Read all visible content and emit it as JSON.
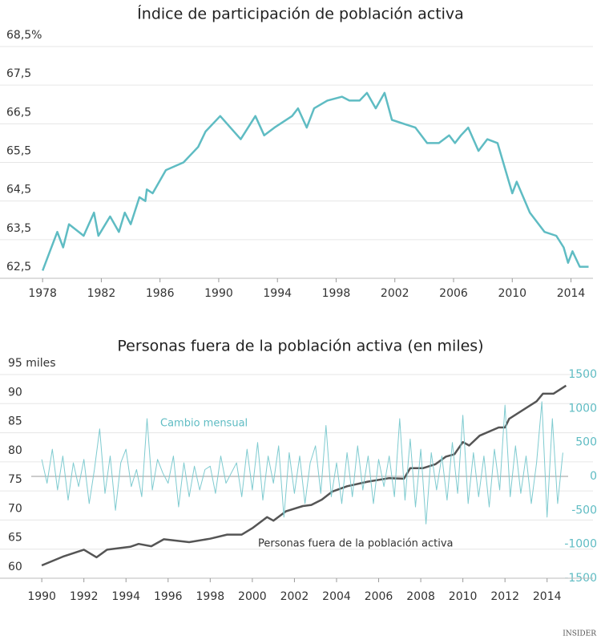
{
  "chart_data": [
    {
      "type": "line",
      "title": "Índice de participación de población activa",
      "series": [
        {
          "name": "Índice de participación",
          "color": "#5fbcc3",
          "x": [
            1978,
            1978.5,
            1979,
            1979.4,
            1979.8,
            1980.8,
            1981.5,
            1981.8,
            1982.6,
            1983.2,
            1983.6,
            1984,
            1984.6,
            1985,
            1985.1,
            1985.5,
            1986.4,
            1987.6,
            1988.6,
            1989.1,
            1990.1,
            1991.5,
            1992.5,
            1993.1,
            1993.8,
            1995,
            1995.4,
            1996,
            1996.5,
            1997.4,
            1998.4,
            1998.9,
            1999.6,
            2000.1,
            2000.7,
            2001.3,
            2001.8,
            2003.4,
            2004.2,
            2005,
            2005.7,
            2006.1,
            2006.5,
            2007,
            2007.7,
            2008.3,
            2009,
            2010,
            2010.3,
            2011.2,
            2012.2,
            2013,
            2013.5,
            2013.8,
            2014.1,
            2014.6,
            2015.2
          ],
          "values": [
            62.7,
            63.2,
            63.7,
            63.3,
            63.9,
            63.6,
            64.2,
            63.6,
            64.1,
            63.7,
            64.2,
            63.9,
            64.6,
            64.5,
            64.8,
            64.7,
            65.3,
            65.5,
            65.9,
            66.3,
            66.7,
            66.1,
            66.7,
            66.2,
            66.4,
            66.7,
            66.9,
            66.4,
            66.9,
            67.1,
            67.2,
            67.1,
            67.1,
            67.3,
            66.9,
            67.3,
            66.6,
            66.4,
            66.0,
            66.0,
            66.2,
            66.0,
            66.2,
            66.4,
            65.8,
            66.1,
            66.0,
            64.7,
            65.0,
            64.2,
            63.7,
            63.6,
            63.3,
            62.9,
            63.2,
            62.8,
            62.8
          ]
        }
      ],
      "xlim": [
        1977.5,
        2015.5
      ],
      "xticks": [
        1978,
        1982,
        1986,
        1990,
        1994,
        1998,
        2002,
        2006,
        2010,
        2014
      ],
      "ylim": [
        62.5,
        68.5
      ],
      "yticks": [
        {
          "value": 62.5,
          "label": "62,5"
        },
        {
          "value": 63.5,
          "label": "63,5"
        },
        {
          "value": 64.5,
          "label": "64,5"
        },
        {
          "value": 65.5,
          "label": "65,5"
        },
        {
          "value": 66.5,
          "label": "66,5"
        },
        {
          "value": 67.5,
          "label": "67,5"
        },
        {
          "value": 68.5,
          "label": "68,5%"
        }
      ],
      "grid": true
    },
    {
      "type": "line",
      "title": "Personas fuera de la población activa (en miles)",
      "series": [
        {
          "name": "Personas fuera de la población activa",
          "color": "#555555",
          "x": [
            1990,
            1991,
            1992,
            1992.6,
            1993.1,
            1994.2,
            1994.6,
            1995.2,
            1995.8,
            1997,
            1998,
            1998.8,
            1999.5,
            2000,
            2000.7,
            2001,
            2001.6,
            2002.4,
            2002.8,
            2003.3,
            2003.8,
            2004.5,
            2005.5,
            2006.5,
            2007.2,
            2007.5,
            2008.1,
            2008.7,
            2009.2,
            2009.6,
            2010,
            2010.3,
            2010.8,
            2011.7,
            2012,
            2012.2,
            2013.5,
            2013.8,
            2014.3,
            2014.9
          ],
          "values": [
            62.2,
            63.7,
            64.9,
            63.6,
            64.9,
            65.4,
            65.9,
            65.5,
            66.7,
            66.2,
            66.8,
            67.5,
            67.5,
            68.6,
            70.5,
            69.9,
            71.5,
            72.4,
            72.6,
            73.5,
            74.9,
            75.8,
            76.6,
            77.2,
            77.1,
            78.9,
            78.9,
            79.6,
            80.9,
            81.3,
            83.4,
            82.8,
            84.5,
            85.9,
            85.9,
            87.4,
            90.4,
            91.7,
            91.7,
            93.1
          ]
        },
        {
          "name": "Cambio mensual",
          "color": "#7fcbd0",
          "axis": "y2",
          "x": [
            1990,
            1990.25,
            1990.5,
            1990.75,
            1991,
            1991.25,
            1991.5,
            1991.75,
            1992,
            1992.25,
            1992.5,
            1992.75,
            1993,
            1993.25,
            1993.5,
            1993.75,
            1994,
            1994.25,
            1994.5,
            1994.75,
            1995,
            1995.25,
            1995.5,
            1995.75,
            1996,
            1996.25,
            1996.5,
            1996.75,
            1997,
            1997.25,
            1997.5,
            1997.75,
            1998,
            1998.25,
            1998.5,
            1998.75,
            1999,
            1999.25,
            1999.5,
            1999.75,
            2000,
            2000.25,
            2000.5,
            2000.75,
            2001,
            2001.25,
            2001.5,
            2001.75,
            2002,
            2002.25,
            2002.5,
            2002.75,
            2003,
            2003.25,
            2003.5,
            2003.75,
            2004,
            2004.25,
            2004.5,
            2004.75,
            2005,
            2005.25,
            2005.5,
            2005.75,
            2006,
            2006.25,
            2006.5,
            2006.75,
            2007,
            2007.25,
            2007.5,
            2007.75,
            2008,
            2008.25,
            2008.5,
            2008.75,
            2009,
            2009.25,
            2009.5,
            2009.75,
            2010,
            2010.25,
            2010.5,
            2010.75,
            2011,
            2011.25,
            2011.5,
            2011.75,
            2012,
            2012.25,
            2012.5,
            2012.75,
            2013,
            2013.25,
            2013.5,
            2013.75,
            2014,
            2014.25,
            2014.5,
            2014.75
          ],
          "values": [
            250,
            -100,
            400,
            -200,
            300,
            -350,
            200,
            -150,
            250,
            -400,
            100,
            700,
            -250,
            300,
            -500,
            200,
            400,
            -150,
            100,
            -300,
            850,
            -200,
            250,
            50,
            -100,
            300,
            -450,
            200,
            -300,
            150,
            -200,
            100,
            150,
            -250,
            300,
            -100,
            50,
            200,
            -300,
            400,
            -200,
            500,
            -350,
            300,
            -100,
            450,
            -600,
            350,
            -250,
            300,
            -400,
            200,
            450,
            -250,
            750,
            -300,
            200,
            -400,
            350,
            -300,
            450,
            -200,
            300,
            -400,
            250,
            -150,
            300,
            -300,
            850,
            -350,
            550,
            -450,
            400,
            -700,
            350,
            -200,
            300,
            -350,
            500,
            -250,
            900,
            -400,
            350,
            -300,
            300,
            -450,
            400,
            -200,
            1050,
            -300,
            450,
            -250,
            300,
            -400,
            200,
            1100,
            -600,
            850,
            -400,
            350
          ]
        }
      ],
      "annotations": [
        "Cambio mensual",
        "Personas fuera de la población activa"
      ],
      "xlim": [
        1989.5,
        2015
      ],
      "xticks": [
        1990,
        1992,
        1994,
        1996,
        1998,
        2000,
        2002,
        2004,
        2006,
        2008,
        2010,
        2012,
        2014
      ],
      "ylim": [
        60,
        95
      ],
      "yticks": [
        60,
        65,
        70,
        75,
        80,
        85,
        90,
        {
          "value": 95,
          "label": "95 miles"
        }
      ],
      "y2lim": [
        -1500,
        1500
      ],
      "y2ticks": [
        -1500,
        -1000,
        -500,
        0,
        500,
        1000,
        1500
      ],
      "grid": true
    }
  ],
  "footer": "INSIDER"
}
